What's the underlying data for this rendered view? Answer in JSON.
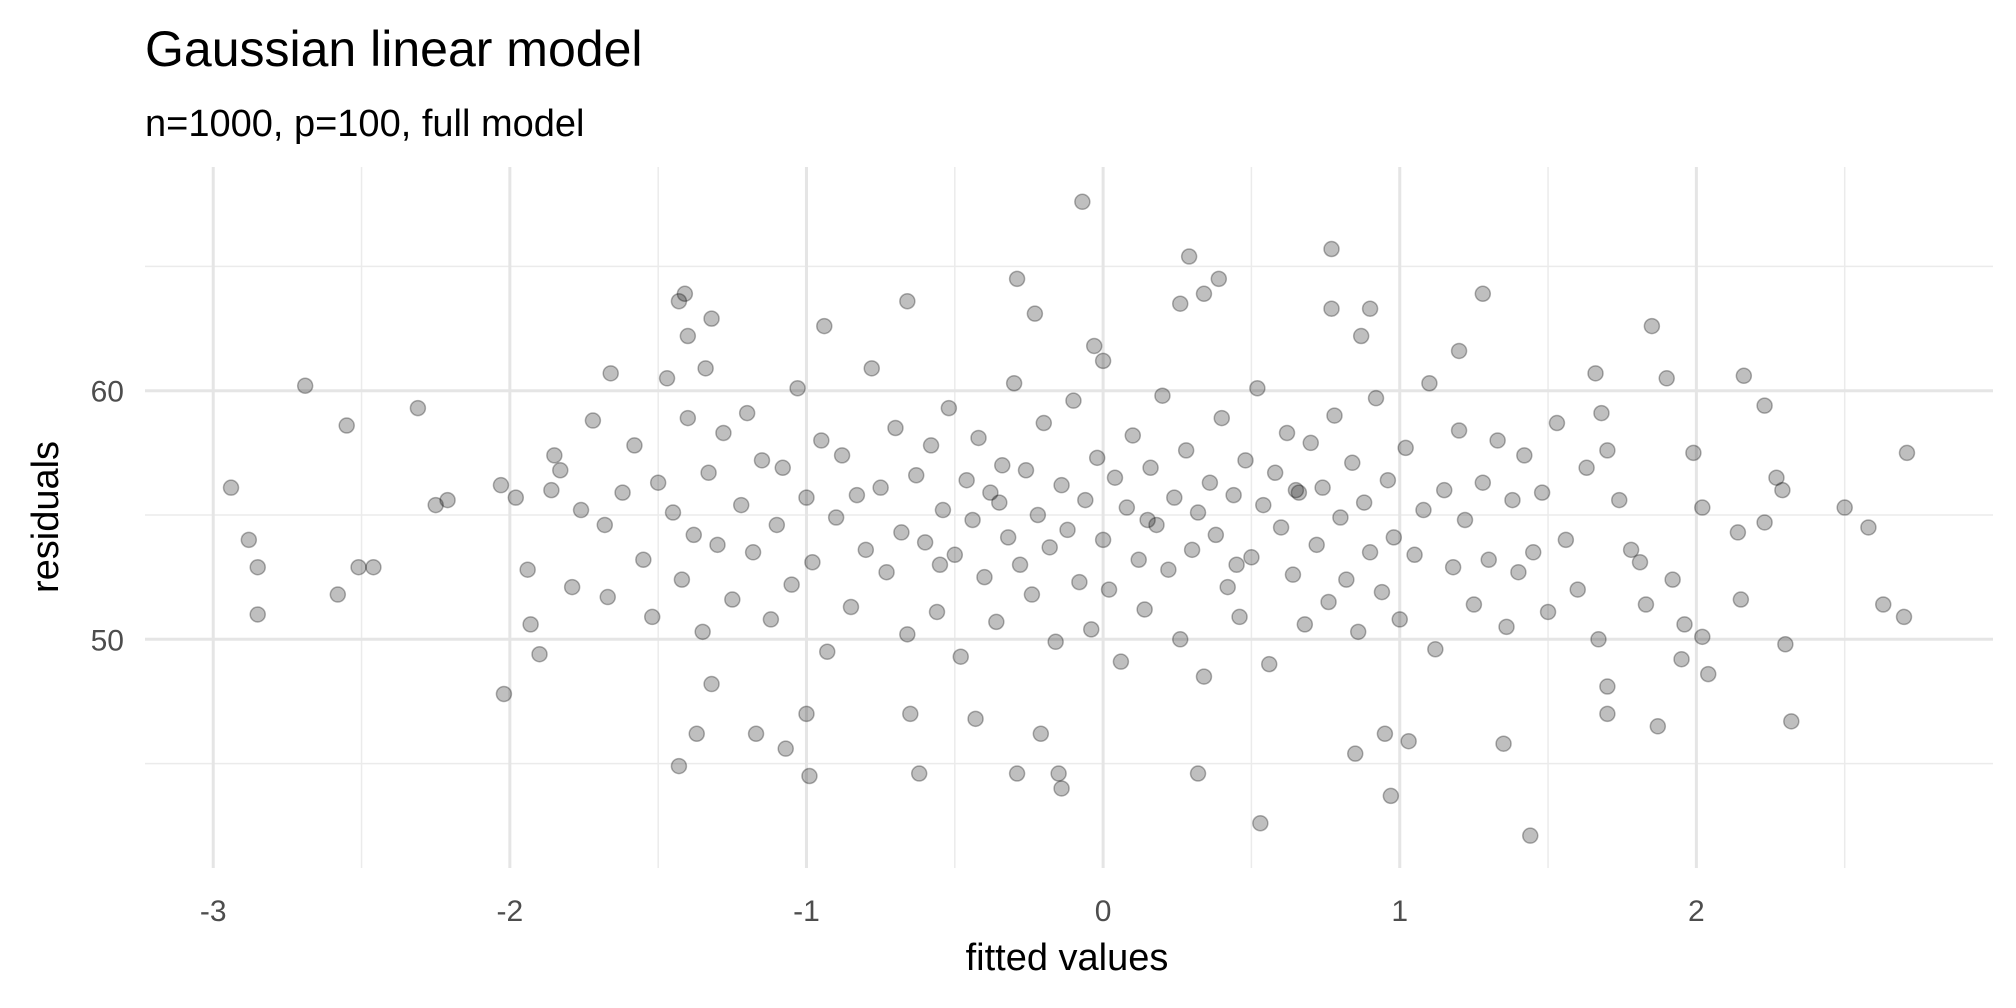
{
  "chart_data": {
    "type": "scatter",
    "title": "Gaussian linear model",
    "subtitle": "n=1000, p=100, full model",
    "xlabel": "fitted values",
    "ylabel": "residuals",
    "xlim": [
      -3.23,
      3.0
    ],
    "ylim": [
      40.8,
      69.0
    ],
    "x_ticks": [
      -3,
      -2,
      -1,
      0,
      1,
      2
    ],
    "x_tick_labels": [
      "-3",
      "-2",
      "-1",
      "0",
      "1",
      "2"
    ],
    "y_ticks": [
      50,
      60
    ],
    "y_tick_labels": [
      "50",
      "60"
    ],
    "grid": true,
    "point_color": "#000000",
    "point_alpha": 0.25,
    "points": [
      [
        -2.94,
        56.1
      ],
      [
        -2.88,
        54.0
      ],
      [
        -2.85,
        52.9
      ],
      [
        -2.85,
        51.0
      ],
      [
        -2.69,
        60.2
      ],
      [
        -2.55,
        58.6
      ],
      [
        -2.58,
        51.8
      ],
      [
        -2.51,
        52.9
      ],
      [
        -2.46,
        52.9
      ],
      [
        -2.31,
        59.3
      ],
      [
        -2.25,
        55.4
      ],
      [
        -2.21,
        55.6
      ],
      [
        -2.03,
        56.2
      ],
      [
        -1.98,
        55.7
      ],
      [
        -1.94,
        52.8
      ],
      [
        -1.93,
        50.6
      ],
      [
        -1.9,
        49.4
      ],
      [
        -2.02,
        47.8
      ],
      [
        -1.85,
        57.4
      ],
      [
        -1.83,
        56.8
      ],
      [
        -1.86,
        56.0
      ],
      [
        -1.76,
        55.2
      ],
      [
        -1.79,
        52.1
      ],
      [
        -1.72,
        58.8
      ],
      [
        -1.68,
        54.6
      ],
      [
        -1.67,
        51.7
      ],
      [
        -1.66,
        60.7
      ],
      [
        -1.43,
        63.6
      ],
      [
        -1.41,
        63.9
      ],
      [
        -1.4,
        62.2
      ],
      [
        -1.34,
        60.9
      ],
      [
        -1.32,
        62.9
      ],
      [
        -1.43,
        44.9
      ],
      [
        -1.37,
        46.2
      ],
      [
        -1.32,
        48.2
      ],
      [
        -1.17,
        46.2
      ],
      [
        -1.07,
        45.6
      ],
      [
        -0.99,
        44.5
      ],
      [
        -1.0,
        47.0
      ],
      [
        -0.94,
        62.6
      ],
      [
        -0.66,
        63.6
      ],
      [
        -0.62,
        44.6
      ],
      [
        -0.65,
        47.0
      ],
      [
        -0.43,
        46.8
      ],
      [
        -0.29,
        64.5
      ],
      [
        -0.23,
        63.1
      ],
      [
        -0.29,
        44.6
      ],
      [
        -0.15,
        44.6
      ],
      [
        -0.14,
        44.0
      ],
      [
        -0.21,
        46.2
      ],
      [
        -0.07,
        67.6
      ],
      [
        -0.03,
        61.8
      ],
      [
        0.0,
        61.2
      ],
      [
        0.29,
        65.4
      ],
      [
        0.34,
        63.9
      ],
      [
        0.39,
        64.5
      ],
      [
        0.26,
        63.5
      ],
      [
        0.32,
        44.6
      ],
      [
        0.53,
        42.6
      ],
      [
        0.77,
        65.7
      ],
      [
        0.9,
        63.3
      ],
      [
        0.77,
        63.3
      ],
      [
        0.87,
        62.2
      ],
      [
        0.97,
        43.7
      ],
      [
        0.85,
        45.4
      ],
      [
        0.95,
        46.2
      ],
      [
        1.03,
        45.9
      ],
      [
        1.28,
        63.9
      ],
      [
        1.2,
        61.6
      ],
      [
        1.35,
        45.8
      ],
      [
        1.44,
        42.1
      ],
      [
        1.85,
        62.6
      ],
      [
        1.9,
        60.5
      ],
      [
        2.16,
        60.6
      ],
      [
        2.23,
        59.4
      ],
      [
        2.27,
        56.5
      ],
      [
        2.29,
        56.0
      ],
      [
        2.23,
        54.7
      ],
      [
        2.14,
        54.3
      ],
      [
        2.02,
        55.3
      ],
      [
        1.99,
        57.5
      ],
      [
        2.15,
        51.6
      ],
      [
        2.02,
        50.1
      ],
      [
        2.04,
        48.6
      ],
      [
        2.3,
        49.8
      ],
      [
        2.32,
        46.7
      ],
      [
        1.87,
        46.5
      ],
      [
        2.5,
        55.3
      ],
      [
        2.58,
        54.5
      ],
      [
        2.63,
        51.4
      ],
      [
        2.7,
        50.9
      ],
      [
        2.71,
        57.5
      ],
      [
        1.96,
        50.6
      ],
      [
        1.95,
        49.2
      ],
      [
        1.92,
        52.4
      ],
      [
        1.83,
        51.4
      ],
      [
        1.81,
        53.1
      ],
      [
        1.78,
        53.6
      ],
      [
        1.74,
        55.6
      ],
      [
        1.7,
        57.6
      ],
      [
        1.68,
        59.1
      ],
      [
        1.66,
        60.7
      ],
      [
        1.7,
        48.1
      ],
      [
        1.7,
        47.0
      ],
      [
        1.67,
        50.0
      ],
      [
        -1.62,
        55.9
      ],
      [
        -1.58,
        57.8
      ],
      [
        -1.55,
        53.2
      ],
      [
        -1.52,
        50.9
      ],
      [
        -1.5,
        56.3
      ],
      [
        -1.47,
        60.5
      ],
      [
        -1.45,
        55.1
      ],
      [
        -1.42,
        52.4
      ],
      [
        -1.4,
        58.9
      ],
      [
        -1.38,
        54.2
      ],
      [
        -1.35,
        50.3
      ],
      [
        -1.33,
        56.7
      ],
      [
        -1.3,
        53.8
      ],
      [
        -1.28,
        58.3
      ],
      [
        -1.25,
        51.6
      ],
      [
        -1.22,
        55.4
      ],
      [
        -1.2,
        59.1
      ],
      [
        -1.18,
        53.5
      ],
      [
        -1.15,
        57.2
      ],
      [
        -1.12,
        50.8
      ],
      [
        -1.1,
        54.6
      ],
      [
        -1.08,
        56.9
      ],
      [
        -1.05,
        52.2
      ],
      [
        -1.03,
        60.1
      ],
      [
        -1.0,
        55.7
      ],
      [
        -0.98,
        53.1
      ],
      [
        -0.95,
        58.0
      ],
      [
        -0.93,
        49.5
      ],
      [
        -0.9,
        54.9
      ],
      [
        -0.88,
        57.4
      ],
      [
        -0.85,
        51.3
      ],
      [
        -0.83,
        55.8
      ],
      [
        -0.8,
        53.6
      ],
      [
        -0.78,
        60.9
      ],
      [
        -0.75,
        56.1
      ],
      [
        -0.73,
        52.7
      ],
      [
        -0.7,
        58.5
      ],
      [
        -0.68,
        54.3
      ],
      [
        -0.66,
        50.2
      ],
      [
        -0.63,
        56.6
      ],
      [
        -0.6,
        53.9
      ],
      [
        -0.58,
        57.8
      ],
      [
        -0.56,
        51.1
      ],
      [
        -0.54,
        55.2
      ],
      [
        -0.52,
        59.3
      ],
      [
        -0.5,
        53.4
      ],
      [
        -0.48,
        49.3
      ],
      [
        -0.46,
        56.4
      ],
      [
        -0.44,
        54.8
      ],
      [
        -0.42,
        58.1
      ],
      [
        -0.4,
        52.5
      ],
      [
        -0.38,
        55.9
      ],
      [
        -0.36,
        50.7
      ],
      [
        -0.34,
        57.0
      ],
      [
        -0.32,
        54.1
      ],
      [
        -0.3,
        60.3
      ],
      [
        -0.28,
        53.0
      ],
      [
        -0.26,
        56.8
      ],
      [
        -0.24,
        51.8
      ],
      [
        -0.22,
        55.0
      ],
      [
        -0.2,
        58.7
      ],
      [
        -0.18,
        53.7
      ],
      [
        -0.16,
        49.9
      ],
      [
        -0.14,
        56.2
      ],
      [
        -0.12,
        54.4
      ],
      [
        -0.1,
        59.6
      ],
      [
        -0.08,
        52.3
      ],
      [
        -0.06,
        55.6
      ],
      [
        -0.04,
        50.4
      ],
      [
        -0.02,
        57.3
      ],
      [
        0.0,
        54.0
      ],
      [
        0.02,
        52.0
      ],
      [
        0.04,
        56.5
      ],
      [
        0.06,
        49.1
      ],
      [
        0.08,
        55.3
      ],
      [
        0.1,
        58.2
      ],
      [
        0.12,
        53.2
      ],
      [
        0.14,
        51.2
      ],
      [
        0.16,
        56.9
      ],
      [
        0.18,
        54.6
      ],
      [
        0.2,
        59.8
      ],
      [
        0.22,
        52.8
      ],
      [
        0.24,
        55.7
      ],
      [
        0.26,
        50.0
      ],
      [
        0.28,
        57.6
      ],
      [
        0.3,
        53.6
      ],
      [
        0.32,
        55.1
      ],
      [
        0.34,
        48.5
      ],
      [
        0.36,
        56.3
      ],
      [
        0.38,
        54.2
      ],
      [
        0.4,
        58.9
      ],
      [
        0.42,
        52.1
      ],
      [
        0.44,
        55.8
      ],
      [
        0.46,
        50.9
      ],
      [
        0.48,
        57.2
      ],
      [
        0.5,
        53.3
      ],
      [
        0.52,
        60.1
      ],
      [
        0.54,
        55.4
      ],
      [
        0.56,
        49.0
      ],
      [
        0.58,
        56.7
      ],
      [
        0.6,
        54.5
      ],
      [
        0.62,
        58.3
      ],
      [
        0.64,
        52.6
      ],
      [
        0.66,
        55.9
      ],
      [
        0.68,
        50.6
      ],
      [
        0.7,
        57.9
      ],
      [
        0.72,
        53.8
      ],
      [
        0.74,
        56.1
      ],
      [
        0.76,
        51.5
      ],
      [
        0.78,
        59.0
      ],
      [
        0.8,
        54.9
      ],
      [
        0.82,
        52.4
      ],
      [
        0.84,
        57.1
      ],
      [
        0.86,
        50.3
      ],
      [
        0.88,
        55.5
      ],
      [
        0.9,
        53.5
      ],
      [
        0.92,
        59.7
      ],
      [
        0.94,
        51.9
      ],
      [
        0.96,
        56.4
      ],
      [
        0.98,
        54.1
      ],
      [
        1.0,
        50.8
      ],
      [
        1.02,
        57.7
      ],
      [
        1.05,
        53.4
      ],
      [
        1.08,
        55.2
      ],
      [
        1.1,
        60.3
      ],
      [
        1.12,
        49.6
      ],
      [
        1.15,
        56.0
      ],
      [
        1.18,
        52.9
      ],
      [
        1.2,
        58.4
      ],
      [
        1.22,
        54.8
      ],
      [
        1.25,
        51.4
      ],
      [
        1.28,
        56.3
      ],
      [
        1.3,
        53.2
      ],
      [
        1.33,
        58.0
      ],
      [
        1.36,
        50.5
      ],
      [
        1.38,
        55.6
      ],
      [
        1.4,
        52.7
      ],
      [
        1.42,
        57.4
      ],
      [
        1.45,
        53.5
      ],
      [
        1.48,
        55.9
      ],
      [
        1.5,
        51.1
      ],
      [
        1.53,
        58.7
      ],
      [
        1.56,
        54.0
      ],
      [
        1.6,
        52.0
      ],
      [
        1.63,
        56.9
      ],
      [
        -0.55,
        53.0
      ],
      [
        0.15,
        54.8
      ],
      [
        -0.35,
        55.5
      ],
      [
        0.45,
        53.0
      ],
      [
        0.65,
        56.0
      ]
    ]
  }
}
